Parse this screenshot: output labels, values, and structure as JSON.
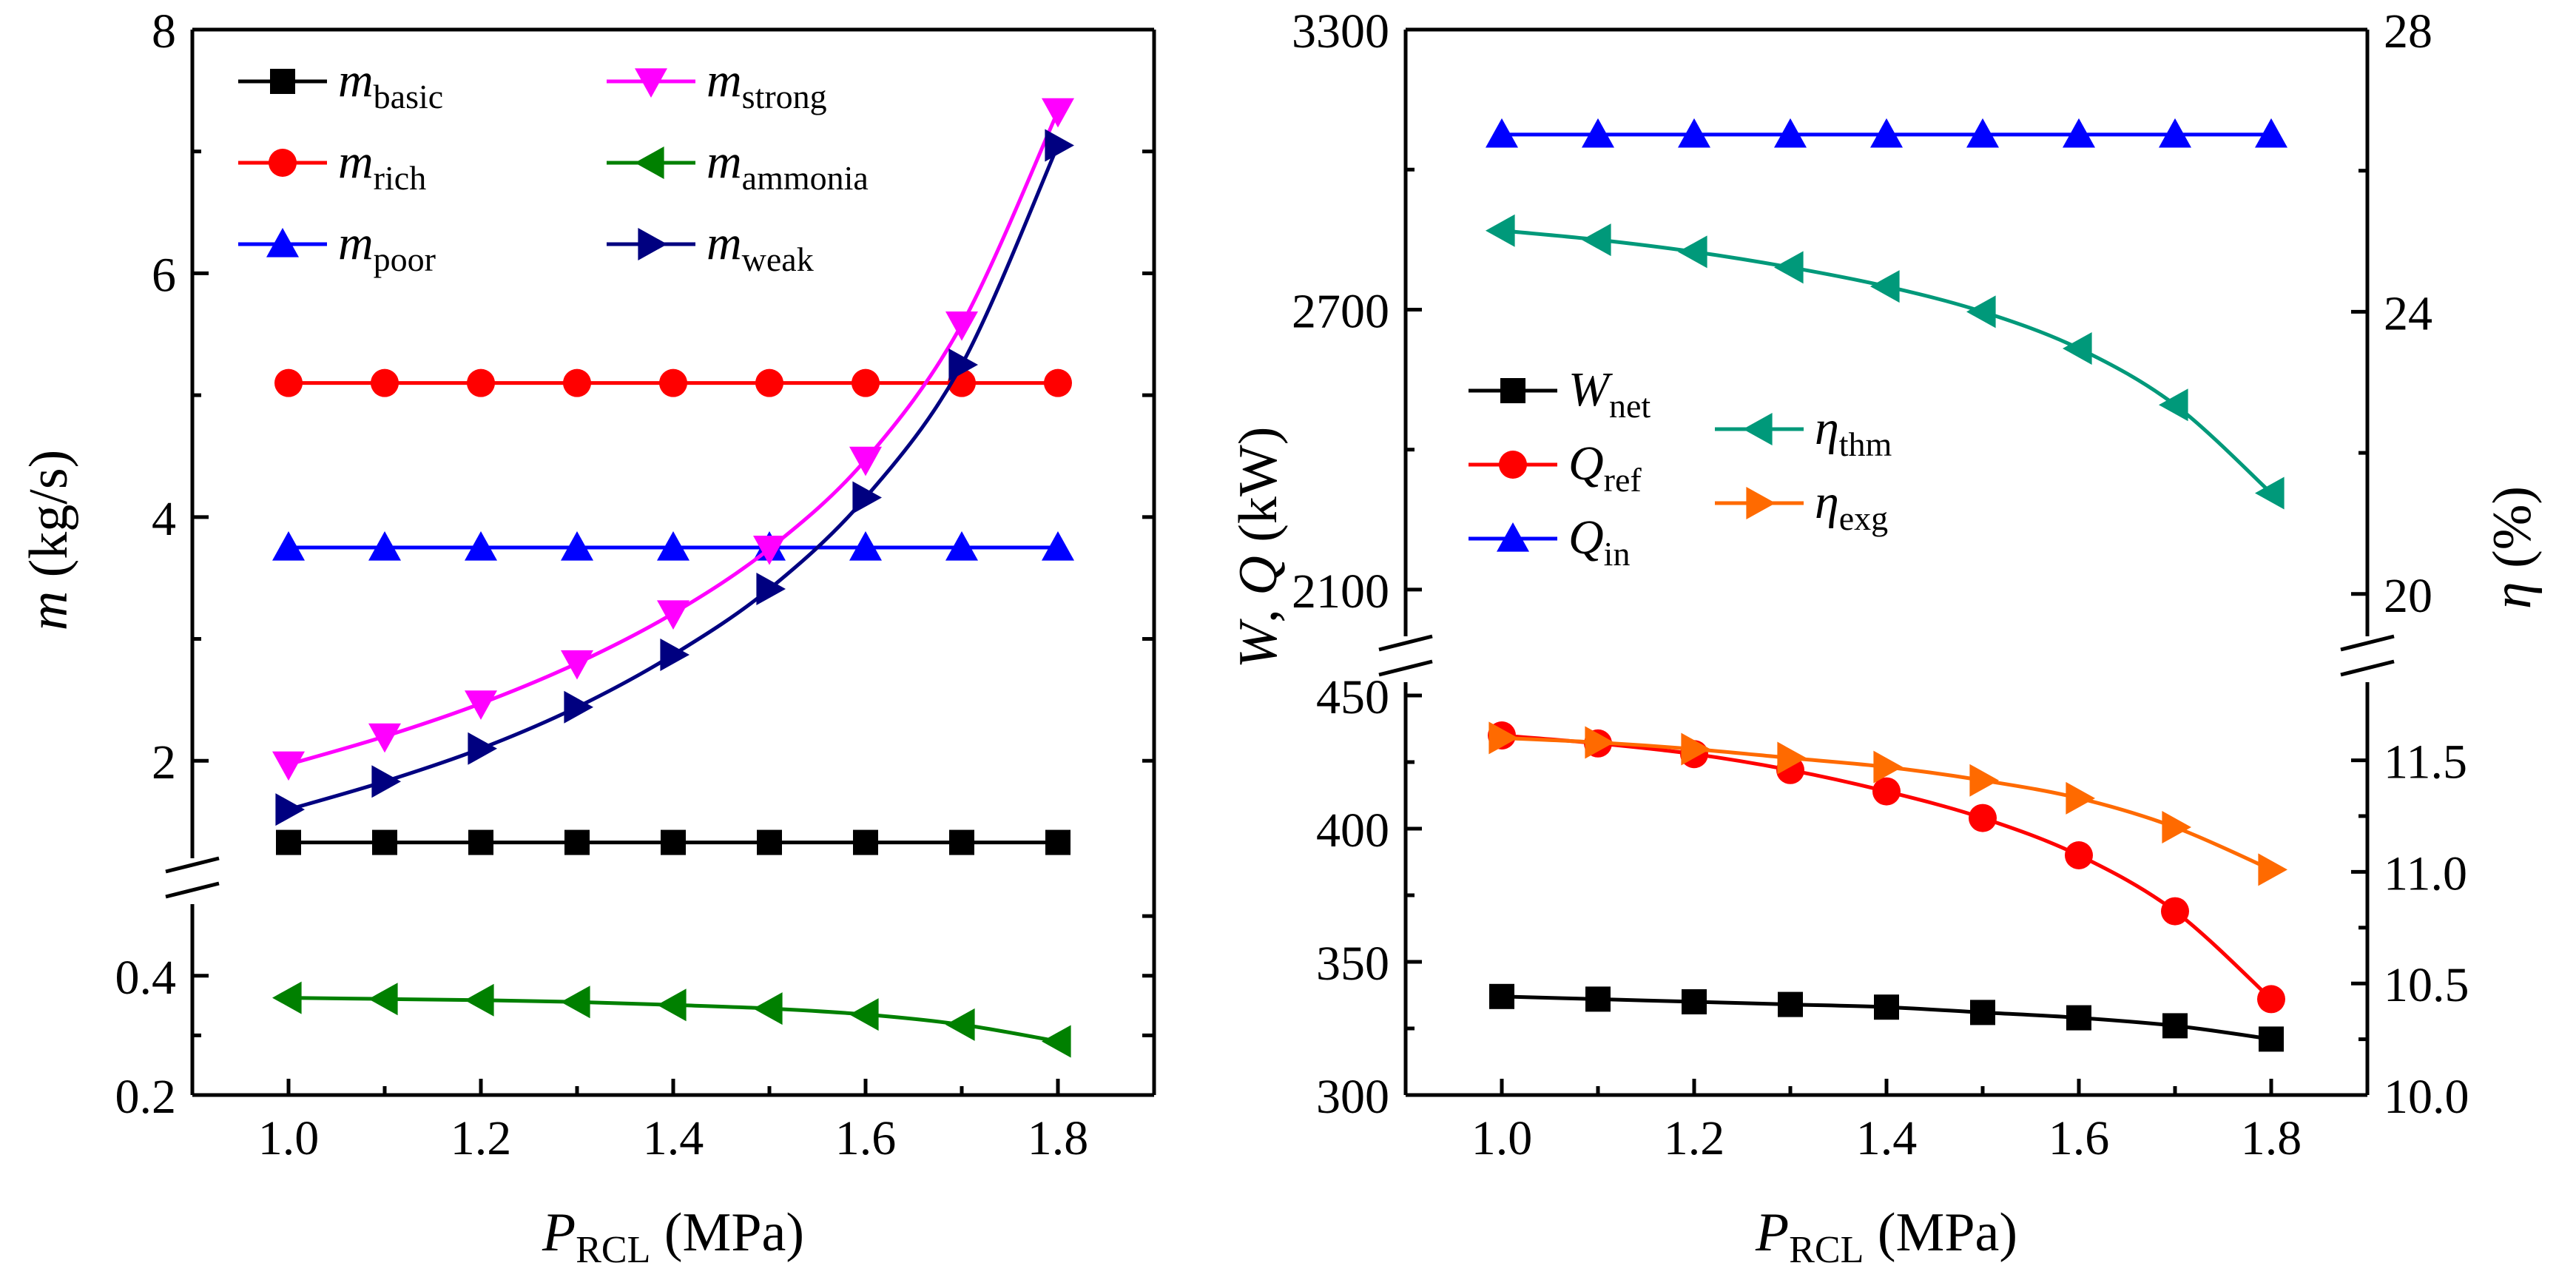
{
  "chart_data": [
    {
      "type": "line",
      "name": "left-chart",
      "x": [
        1.0,
        1.1,
        1.2,
        1.3,
        1.4,
        1.5,
        1.6,
        1.7,
        1.8
      ],
      "xlim": [
        0.9,
        1.9
      ],
      "xticks": [
        "1.0",
        "1.2",
        "1.4",
        "1.6",
        "1.8"
      ],
      "xlabel": {
        "main": "P",
        "sub": "RCL",
        "unit": " (MPa)"
      },
      "ylabel": {
        "main": "m",
        "unit": " (kg/s)"
      },
      "upper_ylim": [
        1.2,
        8
      ],
      "upper_yticks": [
        "2",
        "4",
        "6",
        "8"
      ],
      "lower_ylim": [
        0.2,
        0.52
      ],
      "lower_yticks": [
        "0.2",
        "0.4"
      ],
      "series": [
        {
          "key": "basic",
          "name": "m",
          "sub": "basic",
          "panel": "upper",
          "color": "#000000",
          "marker": "square",
          "values": [
            1.33,
            1.33,
            1.33,
            1.33,
            1.33,
            1.33,
            1.33,
            1.33,
            1.33
          ]
        },
        {
          "key": "rich",
          "name": "m",
          "sub": "rich",
          "panel": "upper",
          "color": "#ff0000",
          "marker": "circle",
          "values": [
            5.1,
            5.1,
            5.1,
            5.1,
            5.1,
            5.1,
            5.1,
            5.1,
            5.1
          ]
        },
        {
          "key": "poor",
          "name": "m",
          "sub": "poor",
          "panel": "upper",
          "color": "#0000ff",
          "marker": "triangle-up",
          "values": [
            3.75,
            3.75,
            3.75,
            3.75,
            3.75,
            3.75,
            3.75,
            3.75,
            3.75
          ]
        },
        {
          "key": "strong",
          "name": "m",
          "sub": "strong",
          "panel": "upper",
          "color": "#ff00ff",
          "marker": "triangle-down",
          "values": [
            1.97,
            2.2,
            2.47,
            2.8,
            3.21,
            3.74,
            4.47,
            5.58,
            7.33
          ]
        },
        {
          "key": "ammonia",
          "name": "m",
          "sub": "ammonia",
          "panel": "lower",
          "color": "#008000",
          "marker": "triangle-left",
          "values": [
            0.363,
            0.361,
            0.359,
            0.356,
            0.351,
            0.345,
            0.335,
            0.318,
            0.29
          ]
        },
        {
          "key": "weak",
          "name": "m",
          "sub": "weak",
          "panel": "upper",
          "color": "#000080",
          "marker": "triangle-right",
          "values": [
            1.6,
            1.83,
            2.1,
            2.44,
            2.87,
            3.41,
            4.16,
            5.25,
            7.05
          ]
        }
      ]
    },
    {
      "type": "line",
      "name": "right-chart",
      "x": [
        1.0,
        1.1,
        1.2,
        1.3,
        1.4,
        1.5,
        1.6,
        1.7,
        1.8
      ],
      "xlim": [
        0.9,
        1.9
      ],
      "xticks": [
        "1.0",
        "1.2",
        "1.4",
        "1.6",
        "1.8"
      ],
      "xlabel": {
        "main": "P",
        "sub": "RCL",
        "unit": " (MPa)"
      },
      "ylabel_left": {
        "w": "W",
        "sep": ", ",
        "q": "Q",
        "unit": " (kW)"
      },
      "ylabel_right": {
        "main": "η",
        "unit": " (%)"
      },
      "left_upper_ylim": [
        2000,
        3300
      ],
      "left_upper_yticks": [
        "2100",
        "2700",
        "3300"
      ],
      "left_lower_ylim": [
        300,
        455
      ],
      "left_lower_yticks": [
        "300",
        "350",
        "400",
        "450"
      ],
      "right_upper_ylim": [
        19.4,
        28
      ],
      "right_upper_yticks": [
        "20",
        "24",
        "28"
      ],
      "right_lower_ylim": [
        10.0,
        11.85
      ],
      "right_lower_yticks": [
        "10.0",
        "10.5",
        "11.0",
        "11.5"
      ],
      "series": [
        {
          "key": "wnet",
          "name": "W",
          "sub": "net",
          "axis": "left-lower",
          "color": "#000000",
          "marker": "square",
          "values": [
            337,
            336,
            335,
            334,
            333,
            331,
            329,
            326,
            321
          ]
        },
        {
          "key": "qref",
          "name": "Q",
          "sub": "ref",
          "axis": "left-lower",
          "color": "#ff0000",
          "marker": "circle",
          "values": [
            435,
            432,
            428,
            422,
            414,
            404,
            390,
            369,
            336
          ]
        },
        {
          "key": "qin",
          "name": "Q",
          "sub": "in",
          "axis": "left-upper",
          "color": "#0000ff",
          "marker": "triangle-up",
          "values": [
            3075,
            3075,
            3075,
            3075,
            3075,
            3075,
            3075,
            3075,
            3075
          ]
        },
        {
          "key": "ethm",
          "name": "η",
          "sub": "thm",
          "axis": "right-upper",
          "color": "#00997a",
          "marker": "triangle-left",
          "values": [
            25.15,
            25.02,
            24.85,
            24.63,
            24.36,
            24.0,
            23.48,
            22.68,
            21.43
          ]
        },
        {
          "key": "eexg",
          "name": "η",
          "sub": "exg",
          "axis": "right-lower",
          "color": "#ff6a00",
          "marker": "triangle-right",
          "values": [
            11.6,
            11.58,
            11.55,
            11.51,
            11.47,
            11.41,
            11.33,
            11.2,
            11.01
          ]
        }
      ]
    }
  ]
}
